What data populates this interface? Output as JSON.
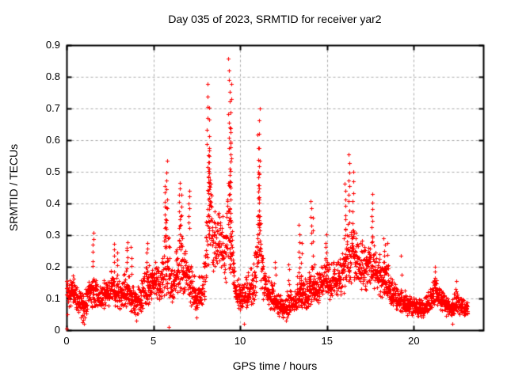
{
  "chart_data": {
    "type": "scatter",
    "title": "Day 035 of 2023, SRMTID for receiver yar2",
    "xlabel": "GPS time / hours",
    "ylabel": "SRMTID / TECUs",
    "xlim": [
      0,
      24
    ],
    "ylim": [
      0,
      0.9
    ],
    "xticks": [
      0,
      5,
      10,
      15,
      20
    ],
    "xtick_labels": [
      "0",
      "5",
      "10",
      "15",
      "20"
    ],
    "yticks": [
      0,
      0.1,
      0.2,
      0.3,
      0.4,
      0.5,
      0.6,
      0.7,
      0.8,
      0.9
    ],
    "ytick_labels": [
      "0",
      "0.1",
      "0.2",
      "0.3",
      "0.4",
      "0.5",
      "0.6",
      "0.7",
      "0.8",
      "0.9"
    ],
    "grid": true,
    "legend": null,
    "marker": "plus",
    "marker_color": "#ff0000",
    "grid_color": "#a8a8a8",
    "border_color": "#000000",
    "background_color": "#ffffff",
    "render_hints": {
      "samples_per_hour": 120,
      "t_start": 0.0,
      "t_end": 23.1,
      "seed": 42
    },
    "baseline_profile": [
      [
        0.0,
        0.13,
        0.06,
        0.05
      ],
      [
        0.4,
        0.12,
        0.05,
        0.06
      ],
      [
        0.9,
        0.07,
        0.05,
        0.05
      ],
      [
        1.3,
        0.11,
        0.05,
        0.06
      ],
      [
        1.55,
        0.12,
        0.05,
        0.07
      ],
      [
        2.0,
        0.1,
        0.05,
        0.05
      ],
      [
        2.6,
        0.13,
        0.05,
        0.07
      ],
      [
        3.0,
        0.11,
        0.05,
        0.06
      ],
      [
        3.5,
        0.12,
        0.06,
        0.08
      ],
      [
        4.0,
        0.08,
        0.05,
        0.05
      ],
      [
        4.6,
        0.13,
        0.06,
        0.08
      ],
      [
        5.0,
        0.16,
        0.06,
        0.07
      ],
      [
        5.4,
        0.14,
        0.05,
        0.07
      ],
      [
        5.75,
        0.22,
        0.14,
        0.18
      ],
      [
        6.1,
        0.13,
        0.05,
        0.07
      ],
      [
        6.55,
        0.22,
        0.12,
        0.16
      ],
      [
        7.05,
        0.15,
        0.07,
        0.09
      ],
      [
        7.5,
        0.1,
        0.05,
        0.06
      ],
      [
        7.9,
        0.14,
        0.07,
        0.08
      ],
      [
        8.2,
        0.4,
        0.22,
        0.16
      ],
      [
        8.55,
        0.28,
        0.12,
        0.12
      ],
      [
        8.9,
        0.26,
        0.1,
        0.12
      ],
      [
        9.15,
        0.24,
        0.1,
        0.12
      ],
      [
        9.4,
        0.38,
        0.24,
        0.24
      ],
      [
        9.65,
        0.14,
        0.06,
        0.07
      ],
      [
        10.0,
        0.1,
        0.05,
        0.05
      ],
      [
        10.45,
        0.12,
        0.05,
        0.08
      ],
      [
        10.8,
        0.14,
        0.06,
        0.1
      ],
      [
        11.1,
        0.32,
        0.18,
        0.16
      ],
      [
        11.35,
        0.14,
        0.06,
        0.08
      ],
      [
        11.7,
        0.11,
        0.05,
        0.06
      ],
      [
        12.1,
        0.08,
        0.04,
        0.05
      ],
      [
        12.55,
        0.07,
        0.04,
        0.05
      ],
      [
        12.85,
        0.08,
        0.04,
        0.06
      ],
      [
        13.15,
        0.09,
        0.04,
        0.06
      ],
      [
        13.45,
        0.12,
        0.06,
        0.1
      ],
      [
        13.8,
        0.1,
        0.05,
        0.06
      ],
      [
        14.1,
        0.14,
        0.06,
        0.1
      ],
      [
        14.5,
        0.13,
        0.05,
        0.06
      ],
      [
        14.9,
        0.16,
        0.06,
        0.09
      ],
      [
        15.25,
        0.14,
        0.06,
        0.07
      ],
      [
        15.65,
        0.17,
        0.07,
        0.09
      ],
      [
        16.0,
        0.21,
        0.1,
        0.12
      ],
      [
        16.35,
        0.25,
        0.12,
        0.13
      ],
      [
        16.7,
        0.22,
        0.1,
        0.11
      ],
      [
        17.05,
        0.19,
        0.08,
        0.1
      ],
      [
        17.45,
        0.21,
        0.09,
        0.1
      ],
      [
        17.8,
        0.19,
        0.08,
        0.09
      ],
      [
        18.2,
        0.16,
        0.06,
        0.08
      ],
      [
        18.6,
        0.13,
        0.05,
        0.06
      ],
      [
        19.0,
        0.1,
        0.04,
        0.05
      ],
      [
        19.4,
        0.09,
        0.04,
        0.04
      ],
      [
        19.8,
        0.07,
        0.03,
        0.04
      ],
      [
        20.2,
        0.065,
        0.03,
        0.04
      ],
      [
        20.6,
        0.07,
        0.03,
        0.04
      ],
      [
        21.0,
        0.1,
        0.04,
        0.05
      ],
      [
        21.3,
        0.12,
        0.05,
        0.06
      ],
      [
        21.65,
        0.09,
        0.04,
        0.04
      ],
      [
        22.0,
        0.07,
        0.03,
        0.03
      ],
      [
        22.4,
        0.08,
        0.035,
        0.05
      ],
      [
        22.8,
        0.07,
        0.03,
        0.04
      ],
      [
        23.1,
        0.07,
        0.03,
        0.03
      ]
    ],
    "spike_columns": [
      [
        1.52,
        0.2,
        0.31,
        6
      ],
      [
        2.75,
        0.19,
        0.27,
        5
      ],
      [
        2.92,
        0.18,
        0.25,
        4
      ],
      [
        3.5,
        0.2,
        0.28,
        6
      ],
      [
        3.72,
        0.18,
        0.26,
        4
      ],
      [
        4.62,
        0.2,
        0.28,
        5
      ],
      [
        5.68,
        0.26,
        0.45,
        10
      ],
      [
        5.78,
        0.32,
        0.53,
        8
      ],
      [
        6.5,
        0.28,
        0.47,
        9
      ],
      [
        6.62,
        0.26,
        0.43,
        6
      ],
      [
        7.05,
        0.32,
        0.44,
        7
      ],
      [
        8.12,
        0.52,
        0.775,
        8
      ],
      [
        8.22,
        0.45,
        0.7,
        7
      ],
      [
        8.2,
        0.3,
        0.58,
        18
      ],
      [
        9.36,
        0.58,
        0.855,
        9
      ],
      [
        9.45,
        0.45,
        0.78,
        8
      ],
      [
        9.42,
        0.2,
        0.64,
        22
      ],
      [
        11.02,
        0.42,
        0.62,
        6
      ],
      [
        11.12,
        0.45,
        0.7,
        7
      ],
      [
        11.08,
        0.22,
        0.52,
        16
      ],
      [
        12.0,
        0.15,
        0.22,
        4
      ],
      [
        12.8,
        0.14,
        0.21,
        4
      ],
      [
        13.4,
        0.2,
        0.33,
        6
      ],
      [
        13.52,
        0.17,
        0.28,
        4
      ],
      [
        14.08,
        0.28,
        0.41,
        6
      ],
      [
        14.18,
        0.24,
        0.35,
        4
      ],
      [
        14.95,
        0.22,
        0.3,
        5
      ],
      [
        16.05,
        0.3,
        0.46,
        8
      ],
      [
        16.28,
        0.38,
        0.55,
        8
      ],
      [
        16.5,
        0.34,
        0.5,
        6
      ],
      [
        17.6,
        0.3,
        0.43,
        7
      ],
      [
        18.3,
        0.2,
        0.29,
        6
      ],
      [
        18.48,
        0.17,
        0.27,
        4
      ],
      [
        19.3,
        0.13,
        0.23,
        3
      ],
      [
        21.2,
        0.14,
        0.2,
        4
      ],
      [
        22.45,
        0.11,
        0.155,
        3
      ]
    ],
    "extra_points": [
      [
        0.0,
        0.004
      ],
      [
        0.05,
        0.05
      ],
      [
        1.0,
        0.02
      ],
      [
        4.0,
        0.03
      ],
      [
        5.9,
        0.01
      ],
      [
        7.5,
        0.04
      ],
      [
        10.2,
        0.02
      ],
      [
        12.65,
        0.03
      ],
      [
        22.2,
        0.02
      ]
    ]
  }
}
